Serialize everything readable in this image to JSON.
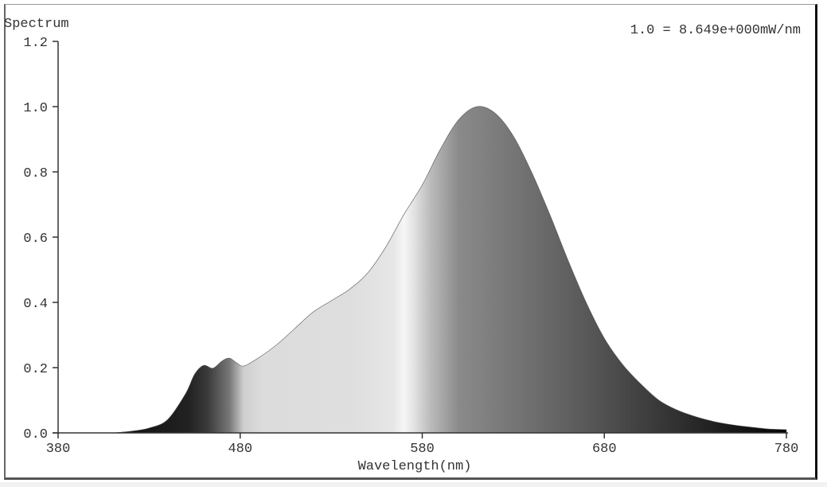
{
  "chart_data": {
    "type": "area",
    "title": "Spectrum",
    "annotation": "1.0 = 8.649e+000mW/nm",
    "xlabel": "Wavelength(nm)",
    "ylabel": "Spectrum",
    "xlim": [
      380,
      780
    ],
    "ylim": [
      0,
      1.2
    ],
    "x_ticks": [
      "380",
      "480",
      "580",
      "680",
      "780"
    ],
    "y_ticks": [
      "0.0",
      "0.2",
      "0.4",
      "0.6",
      "0.8",
      "1.0",
      "1.2"
    ],
    "grid": false,
    "legend": null,
    "fill": "wavelength-grayscale gradient",
    "x": [
      410,
      420,
      430,
      440,
      450,
      455,
      460,
      465,
      470,
      474,
      478,
      482,
      490,
      500,
      510,
      520,
      530,
      540,
      550,
      560,
      570,
      580,
      590,
      600,
      610,
      620,
      630,
      640,
      650,
      660,
      670,
      680,
      690,
      700,
      710,
      720,
      730,
      740,
      750,
      760,
      770,
      780
    ],
    "values": [
      0.0,
      0.005,
      0.015,
      0.04,
      0.12,
      0.18,
      0.207,
      0.198,
      0.22,
      0.229,
      0.215,
      0.205,
      0.23,
      0.27,
      0.32,
      0.37,
      0.405,
      0.44,
      0.49,
      0.57,
      0.67,
      0.76,
      0.87,
      0.96,
      1.0,
      0.98,
      0.91,
      0.8,
      0.67,
      0.53,
      0.4,
      0.29,
      0.21,
      0.15,
      0.1,
      0.07,
      0.05,
      0.035,
      0.025,
      0.018,
      0.012,
      0.01
    ]
  },
  "labels": {
    "title": "Spectrum",
    "annotation": "1.0 = 8.649e+000mW/nm",
    "xlabel": "Wavelength(nm)",
    "x_ticks": [
      "380",
      "480",
      "580",
      "680",
      "780"
    ],
    "y_ticks": [
      "0.0",
      "0.2",
      "0.4",
      "0.6",
      "0.8",
      "1.0",
      "1.2"
    ]
  }
}
